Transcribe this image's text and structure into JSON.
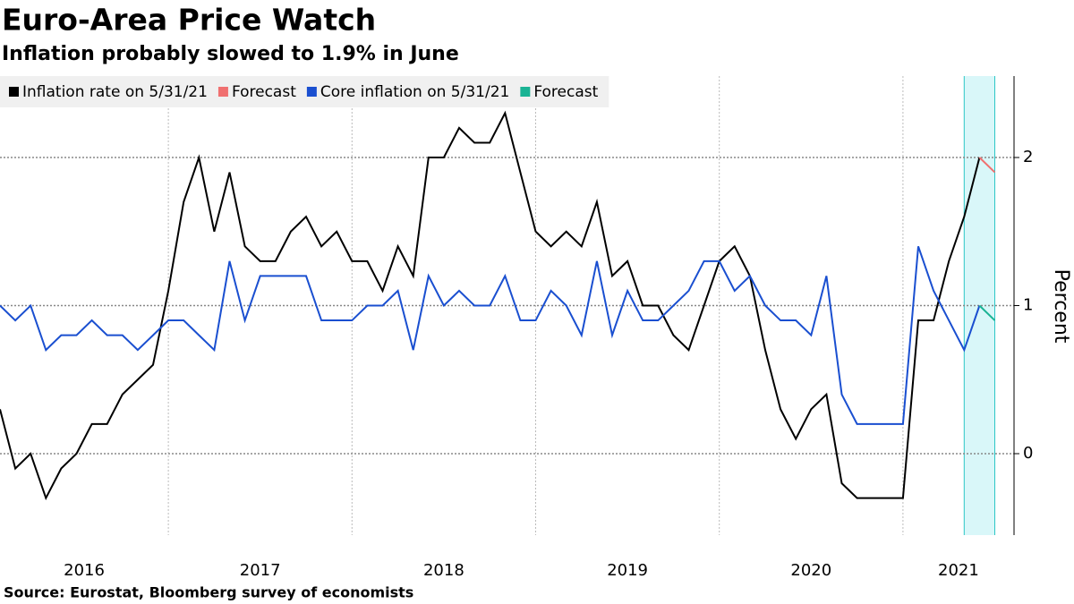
{
  "chart_data": {
    "type": "line",
    "title": "Euro-Area Price Watch",
    "subtitle": "Inflation probably slowed to 1.9% in June",
    "y_label": "Percent",
    "source": "Source: Eurostat, Bloomberg survey of economists",
    "x": [
      "2016-01",
      "2016-02",
      "2016-03",
      "2016-04",
      "2016-05",
      "2016-06",
      "2016-07",
      "2016-08",
      "2016-09",
      "2016-10",
      "2016-11",
      "2016-12",
      "2017-01",
      "2017-02",
      "2017-03",
      "2017-04",
      "2017-05",
      "2017-06",
      "2017-07",
      "2017-08",
      "2017-09",
      "2017-10",
      "2017-11",
      "2017-12",
      "2018-01",
      "2018-02",
      "2018-03",
      "2018-04",
      "2018-05",
      "2018-06",
      "2018-07",
      "2018-08",
      "2018-09",
      "2018-10",
      "2018-11",
      "2018-12",
      "2019-01",
      "2019-02",
      "2019-03",
      "2019-04",
      "2019-05",
      "2019-06",
      "2019-07",
      "2019-08",
      "2019-09",
      "2019-10",
      "2019-11",
      "2019-12",
      "2020-01",
      "2020-02",
      "2020-03",
      "2020-04",
      "2020-05",
      "2020-06",
      "2020-07",
      "2020-08",
      "2020-09",
      "2020-10",
      "2020-11",
      "2020-12",
      "2021-01",
      "2021-02",
      "2021-03",
      "2021-04",
      "2021-05",
      "2021-06"
    ],
    "series": [
      {
        "name": "Inflation rate on 5/31/21",
        "color": "#000000",
        "values": [
          0.3,
          -0.1,
          0.0,
          -0.3,
          -0.1,
          0.0,
          0.2,
          0.2,
          0.4,
          0.5,
          0.6,
          1.1,
          1.7,
          2.0,
          1.5,
          1.9,
          1.4,
          1.3,
          1.3,
          1.5,
          1.6,
          1.4,
          1.5,
          1.3,
          1.3,
          1.1,
          1.4,
          1.2,
          2.0,
          2.0,
          2.2,
          2.1,
          2.1,
          2.3,
          1.9,
          1.5,
          1.4,
          1.5,
          1.4,
          1.7,
          1.2,
          1.3,
          1.0,
          1.0,
          0.8,
          0.7,
          1.0,
          1.3,
          1.4,
          1.2,
          0.7,
          0.3,
          0.1,
          0.3,
          0.4,
          -0.2,
          -0.3,
          -0.3,
          -0.3,
          -0.3,
          0.9,
          0.9,
          1.3,
          1.6,
          2.0,
          null
        ]
      },
      {
        "name": "Forecast",
        "color": "#f07070",
        "values": [
          null,
          null,
          null,
          null,
          null,
          null,
          null,
          null,
          null,
          null,
          null,
          null,
          null,
          null,
          null,
          null,
          null,
          null,
          null,
          null,
          null,
          null,
          null,
          null,
          null,
          null,
          null,
          null,
          null,
          null,
          null,
          null,
          null,
          null,
          null,
          null,
          null,
          null,
          null,
          null,
          null,
          null,
          null,
          null,
          null,
          null,
          null,
          null,
          null,
          null,
          null,
          null,
          null,
          null,
          null,
          null,
          null,
          null,
          null,
          null,
          null,
          null,
          null,
          null,
          2.0,
          1.9
        ]
      },
      {
        "name": "Core inflation on 5/31/21",
        "color": "#1a4fd0",
        "values": [
          1.0,
          0.9,
          1.0,
          0.7,
          0.8,
          0.8,
          0.9,
          0.8,
          0.8,
          0.7,
          0.8,
          0.9,
          0.9,
          0.8,
          0.7,
          1.3,
          0.9,
          1.2,
          1.2,
          1.2,
          1.2,
          0.9,
          0.9,
          0.9,
          1.0,
          1.0,
          1.1,
          0.7,
          1.2,
          1.0,
          1.1,
          1.0,
          1.0,
          1.2,
          0.9,
          0.9,
          1.1,
          1.0,
          0.8,
          1.3,
          0.8,
          1.1,
          0.9,
          0.9,
          1.0,
          1.1,
          1.3,
          1.3,
          1.1,
          1.2,
          1.0,
          0.9,
          0.9,
          0.8,
          1.2,
          0.4,
          0.2,
          0.2,
          0.2,
          0.2,
          1.4,
          1.1,
          0.9,
          0.7,
          1.0,
          null
        ]
      },
      {
        "name": "Forecast",
        "color": "#1ab394",
        "values": [
          null,
          null,
          null,
          null,
          null,
          null,
          null,
          null,
          null,
          null,
          null,
          null,
          null,
          null,
          null,
          null,
          null,
          null,
          null,
          null,
          null,
          null,
          null,
          null,
          null,
          null,
          null,
          null,
          null,
          null,
          null,
          null,
          null,
          null,
          null,
          null,
          null,
          null,
          null,
          null,
          null,
          null,
          null,
          null,
          null,
          null,
          null,
          null,
          null,
          null,
          null,
          null,
          null,
          null,
          null,
          null,
          null,
          null,
          null,
          null,
          null,
          null,
          null,
          null,
          1.0,
          0.9
        ]
      }
    ],
    "xticks": [
      2016,
      2017,
      2018,
      2019,
      2020,
      2021
    ],
    "ylim": [
      -0.55,
      2.55
    ],
    "yticks": [
      0,
      1,
      2
    ],
    "grid": true,
    "shaded_range": [
      "2021-04",
      "2021-06"
    ],
    "shade_color": "#d9f7f9",
    "legend": "top-left"
  }
}
